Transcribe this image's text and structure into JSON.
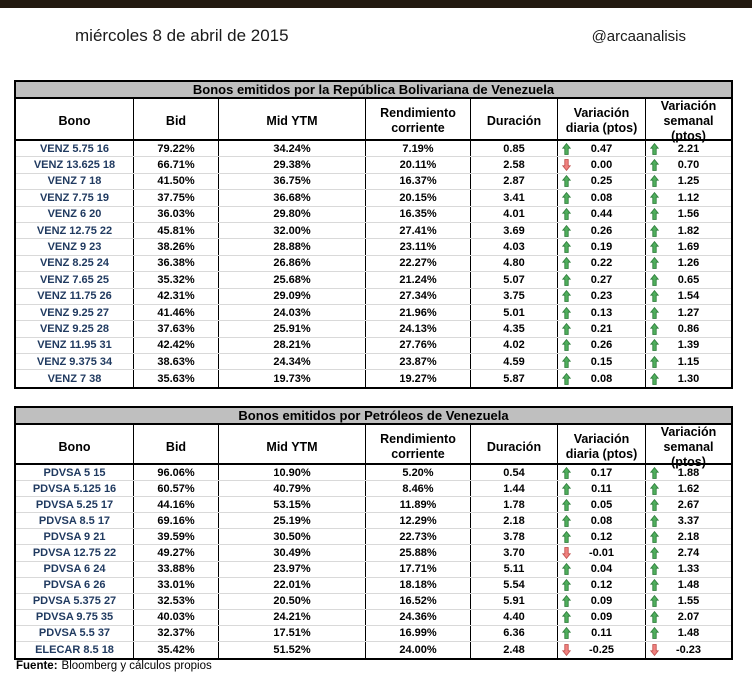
{
  "header": {
    "date": "miércoles 8 de abril de 2015",
    "handle": "@arcaanalisis"
  },
  "column_headers": {
    "bono": "Bono",
    "bid": "Bid",
    "mid_ytm": "Mid YTM",
    "rendimiento": "Rendimiento\ncorriente",
    "duracion": "Duración",
    "var_diaria": "Variación\ndiaria (ptos)",
    "var_semanal": "Variación\nsemanal (ptos)"
  },
  "tables": [
    {
      "title": "Bonos emitidos por la República Bolivariana de Venezuela",
      "rows": [
        {
          "bono": "VENZ 5.75 16",
          "bid": "79.22%",
          "mid_ytm": "34.24%",
          "rendimiento": "7.19%",
          "duracion": "0.85",
          "var_diaria": {
            "dir": "up",
            "value": "0.47"
          },
          "var_semanal": {
            "dir": "up",
            "value": "2.21"
          }
        },
        {
          "bono": "VENZ 13.625 18",
          "bid": "66.71%",
          "mid_ytm": "29.38%",
          "rendimiento": "20.11%",
          "duracion": "2.58",
          "var_diaria": {
            "dir": "down",
            "value": "0.00"
          },
          "var_semanal": {
            "dir": "up",
            "value": "0.70"
          }
        },
        {
          "bono": "VENZ 7 18",
          "bid": "41.50%",
          "mid_ytm": "36.75%",
          "rendimiento": "16.37%",
          "duracion": "2.87",
          "var_diaria": {
            "dir": "up",
            "value": "0.25"
          },
          "var_semanal": {
            "dir": "up",
            "value": "1.25"
          }
        },
        {
          "bono": "VENZ 7.75 19",
          "bid": "37.75%",
          "mid_ytm": "36.68%",
          "rendimiento": "20.15%",
          "duracion": "3.41",
          "var_diaria": {
            "dir": "up",
            "value": "0.08"
          },
          "var_semanal": {
            "dir": "up",
            "value": "1.12"
          }
        },
        {
          "bono": "VENZ 6 20",
          "bid": "36.03%",
          "mid_ytm": "29.80%",
          "rendimiento": "16.35%",
          "duracion": "4.01",
          "var_diaria": {
            "dir": "up",
            "value": "0.44"
          },
          "var_semanal": {
            "dir": "up",
            "value": "1.56"
          }
        },
        {
          "bono": "VENZ 12.75 22",
          "bid": "45.81%",
          "mid_ytm": "32.00%",
          "rendimiento": "27.41%",
          "duracion": "3.69",
          "var_diaria": {
            "dir": "up",
            "value": "0.26"
          },
          "var_semanal": {
            "dir": "up",
            "value": "1.82"
          }
        },
        {
          "bono": "VENZ 9 23",
          "bid": "38.26%",
          "mid_ytm": "28.88%",
          "rendimiento": "23.11%",
          "duracion": "4.03",
          "var_diaria": {
            "dir": "up",
            "value": "0.19"
          },
          "var_semanal": {
            "dir": "up",
            "value": "1.69"
          }
        },
        {
          "bono": "VENZ 8.25 24",
          "bid": "36.38%",
          "mid_ytm": "26.86%",
          "rendimiento": "22.27%",
          "duracion": "4.80",
          "var_diaria": {
            "dir": "up",
            "value": "0.22"
          },
          "var_semanal": {
            "dir": "up",
            "value": "1.26"
          }
        },
        {
          "bono": "VENZ 7.65 25",
          "bid": "35.32%",
          "mid_ytm": "25.68%",
          "rendimiento": "21.24%",
          "duracion": "5.07",
          "var_diaria": {
            "dir": "up",
            "value": "0.27"
          },
          "var_semanal": {
            "dir": "up",
            "value": "0.65"
          }
        },
        {
          "bono": "VENZ 11.75 26",
          "bid": "42.31%",
          "mid_ytm": "29.09%",
          "rendimiento": "27.34%",
          "duracion": "3.75",
          "var_diaria": {
            "dir": "up",
            "value": "0.23"
          },
          "var_semanal": {
            "dir": "up",
            "value": "1.54"
          }
        },
        {
          "bono": "VENZ 9.25 27",
          "bid": "41.46%",
          "mid_ytm": "24.03%",
          "rendimiento": "21.96%",
          "duracion": "5.01",
          "var_diaria": {
            "dir": "up",
            "value": "0.13"
          },
          "var_semanal": {
            "dir": "up",
            "value": "1.27"
          }
        },
        {
          "bono": "VENZ 9.25 28",
          "bid": "37.63%",
          "mid_ytm": "25.91%",
          "rendimiento": "24.13%",
          "duracion": "4.35",
          "var_diaria": {
            "dir": "up",
            "value": "0.21"
          },
          "var_semanal": {
            "dir": "up",
            "value": "0.86"
          }
        },
        {
          "bono": "VENZ 11.95 31",
          "bid": "42.42%",
          "mid_ytm": "28.21%",
          "rendimiento": "27.76%",
          "duracion": "4.02",
          "var_diaria": {
            "dir": "up",
            "value": "0.26"
          },
          "var_semanal": {
            "dir": "up",
            "value": "1.39"
          }
        },
        {
          "bono": "VENZ 9.375 34",
          "bid": "38.63%",
          "mid_ytm": "24.34%",
          "rendimiento": "23.87%",
          "duracion": "4.59",
          "var_diaria": {
            "dir": "up",
            "value": "0.15"
          },
          "var_semanal": {
            "dir": "up",
            "value": "1.15"
          }
        },
        {
          "bono": "VENZ 7 38",
          "bid": "35.63%",
          "mid_ytm": "19.73%",
          "rendimiento": "19.27%",
          "duracion": "5.87",
          "var_diaria": {
            "dir": "up",
            "value": "0.08"
          },
          "var_semanal": {
            "dir": "up",
            "value": "1.30"
          }
        }
      ]
    },
    {
      "title": "Bonos emitidos por Petróleos de Venezuela",
      "rows": [
        {
          "bono": "PDVSA 5 15",
          "bid": "96.06%",
          "mid_ytm": "10.90%",
          "rendimiento": "5.20%",
          "duracion": "0.54",
          "var_diaria": {
            "dir": "up",
            "value": "0.17"
          },
          "var_semanal": {
            "dir": "up",
            "value": "1.88"
          }
        },
        {
          "bono": "PDVSA 5.125 16",
          "bid": "60.57%",
          "mid_ytm": "40.79%",
          "rendimiento": "8.46%",
          "duracion": "1.44",
          "var_diaria": {
            "dir": "up",
            "value": "0.11"
          },
          "var_semanal": {
            "dir": "up",
            "value": "1.62"
          }
        },
        {
          "bono": "PDVSA 5.25 17",
          "bid": "44.16%",
          "mid_ytm": "53.15%",
          "rendimiento": "11.89%",
          "duracion": "1.78",
          "var_diaria": {
            "dir": "up",
            "value": "0.05"
          },
          "var_semanal": {
            "dir": "up",
            "value": "2.67"
          }
        },
        {
          "bono": "PDVSA 8.5 17",
          "bid": "69.16%",
          "mid_ytm": "25.19%",
          "rendimiento": "12.29%",
          "duracion": "2.18",
          "var_diaria": {
            "dir": "up",
            "value": "0.08"
          },
          "var_semanal": {
            "dir": "up",
            "value": "3.37"
          }
        },
        {
          "bono": "PDVSA 9 21",
          "bid": "39.59%",
          "mid_ytm": "30.50%",
          "rendimiento": "22.73%",
          "duracion": "3.78",
          "var_diaria": {
            "dir": "up",
            "value": "0.12"
          },
          "var_semanal": {
            "dir": "up",
            "value": "2.18"
          }
        },
        {
          "bono": "PDVSA 12.75 22",
          "bid": "49.27%",
          "mid_ytm": "30.49%",
          "rendimiento": "25.88%",
          "duracion": "3.70",
          "var_diaria": {
            "dir": "down",
            "value": "-0.01"
          },
          "var_semanal": {
            "dir": "up",
            "value": "2.74"
          }
        },
        {
          "bono": "PDVSA 6 24",
          "bid": "33.88%",
          "mid_ytm": "23.97%",
          "rendimiento": "17.71%",
          "duracion": "5.11",
          "var_diaria": {
            "dir": "up",
            "value": "0.04"
          },
          "var_semanal": {
            "dir": "up",
            "value": "1.33"
          }
        },
        {
          "bono": "PDVSA 6 26",
          "bid": "33.01%",
          "mid_ytm": "22.01%",
          "rendimiento": "18.18%",
          "duracion": "5.54",
          "var_diaria": {
            "dir": "up",
            "value": "0.12"
          },
          "var_semanal": {
            "dir": "up",
            "value": "1.48"
          }
        },
        {
          "bono": "PDVSA 5.375 27",
          "bid": "32.53%",
          "mid_ytm": "20.50%",
          "rendimiento": "16.52%",
          "duracion": "5.91",
          "var_diaria": {
            "dir": "up",
            "value": "0.09"
          },
          "var_semanal": {
            "dir": "up",
            "value": "1.55"
          }
        },
        {
          "bono": "PDVSA 9.75 35",
          "bid": "40.03%",
          "mid_ytm": "24.21%",
          "rendimiento": "24.36%",
          "duracion": "4.40",
          "var_diaria": {
            "dir": "up",
            "value": "0.09"
          },
          "var_semanal": {
            "dir": "up",
            "value": "2.07"
          }
        },
        {
          "bono": "PDVSA 5.5 37",
          "bid": "32.37%",
          "mid_ytm": "17.51%",
          "rendimiento": "16.99%",
          "duracion": "6.36",
          "var_diaria": {
            "dir": "up",
            "value": "0.11"
          },
          "var_semanal": {
            "dir": "up",
            "value": "1.48"
          }
        },
        {
          "bono": "ELECAR 8.5 18",
          "bid": "35.42%",
          "mid_ytm": "51.52%",
          "rendimiento": "24.00%",
          "duracion": "2.48",
          "var_diaria": {
            "dir": "down",
            "value": "-0.25"
          },
          "var_semanal": {
            "dir": "down",
            "value": "-0.23"
          }
        }
      ]
    }
  ],
  "footer": {
    "label": "Fuente:",
    "text": "Bloomberg y cálculos propios"
  },
  "icons": {
    "up": "arrow-up-icon",
    "down": "arrow-down-icon"
  },
  "colors": {
    "top_bar": "#231A10",
    "title_bg": "#BFBFBF",
    "border": "#000000",
    "row_line": "#D9D9D9",
    "text": "#000000",
    "bond_text": "#203A60",
    "arrow_up_fill": "#4FAE5C",
    "arrow_up_stroke": "#2E7D3B",
    "arrow_down_fill": "#F0817F",
    "arrow_down_stroke": "#C0504D"
  }
}
